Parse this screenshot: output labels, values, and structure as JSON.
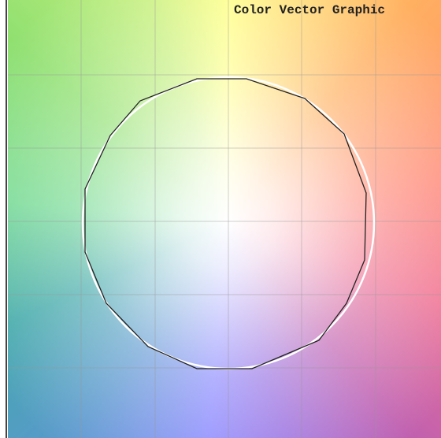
{
  "title": "Color Vector Graphic"
}
